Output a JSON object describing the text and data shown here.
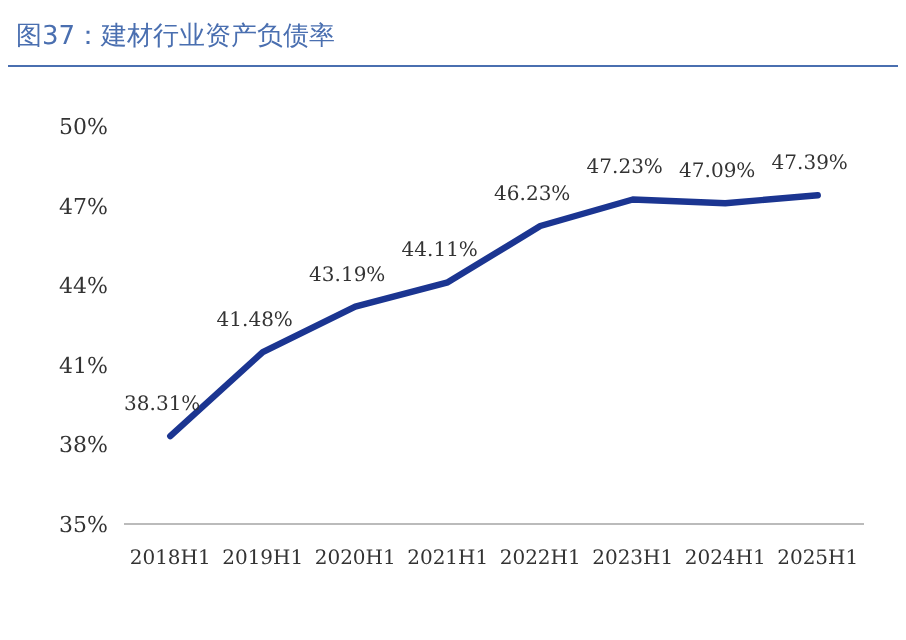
{
  "chart_data": {
    "type": "line",
    "title": "图37：建材行业资产负债率",
    "categories": [
      "2018H1",
      "2019H1",
      "2020H1",
      "2021H1",
      "2022H1",
      "2023H1",
      "2024H1",
      "2025H1"
    ],
    "series": [
      {
        "color": "#1b3591",
        "values": [
          38.31,
          41.48,
          43.19,
          44.11,
          46.23,
          47.23,
          47.09,
          47.39
        ],
        "value_labels": [
          "38.31%",
          "41.48%",
          "43.19%",
          "44.11%",
          "46.23%",
          "47.23%",
          "47.09%",
          "47.39%"
        ]
      }
    ],
    "ylim": [
      35,
      50
    ],
    "yticks": [
      {
        "value": 35,
        "label": "35%"
      },
      {
        "value": 38,
        "label": "38%"
      },
      {
        "value": 41,
        "label": "41%"
      },
      {
        "value": 44,
        "label": "44%"
      },
      {
        "value": 47,
        "label": "47%"
      },
      {
        "value": 50,
        "label": "50%"
      }
    ],
    "grid": false,
    "marker": "none",
    "line_style": "solid"
  }
}
